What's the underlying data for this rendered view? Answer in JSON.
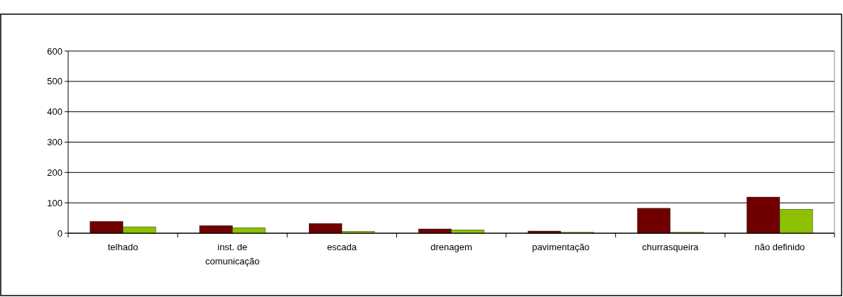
{
  "chart_data": {
    "type": "bar",
    "categories": [
      "telhado",
      "inst. de comunicação",
      "escada",
      "drenagem",
      "pavimentação",
      "churrasqueira",
      "não definido"
    ],
    "series": [
      {
        "color": "#700000",
        "values": [
          39,
          25,
          32,
          14,
          7,
          82,
          119
        ]
      },
      {
        "color": "#8cc000",
        "values": [
          21,
          18,
          6,
          11,
          3,
          3,
          79
        ]
      }
    ],
    "ylim": [
      0,
      600
    ],
    "yticks": [
      0,
      100,
      200,
      300,
      400,
      500,
      600
    ],
    "grid": "y"
  }
}
